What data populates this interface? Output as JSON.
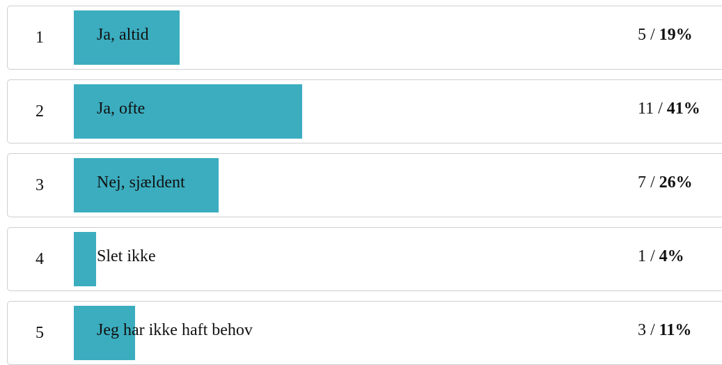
{
  "chart_data": {
    "type": "bar",
    "orientation": "horizontal",
    "bar_color": "#3badbf",
    "categories": [
      "Ja, altid",
      "Ja, ofte",
      "Nej, sjældent",
      "Slet ikke",
      "Jeg har ikke haft behov"
    ],
    "ranks": [
      "1",
      "2",
      "3",
      "4",
      "5"
    ],
    "counts": [
      "5",
      "11",
      "7",
      "1",
      "3"
    ],
    "percent_labels": [
      "19%",
      "41%",
      "26%",
      "4%",
      "11%"
    ],
    "values": [
      19,
      41,
      26,
      4,
      11
    ]
  },
  "separator": "/"
}
